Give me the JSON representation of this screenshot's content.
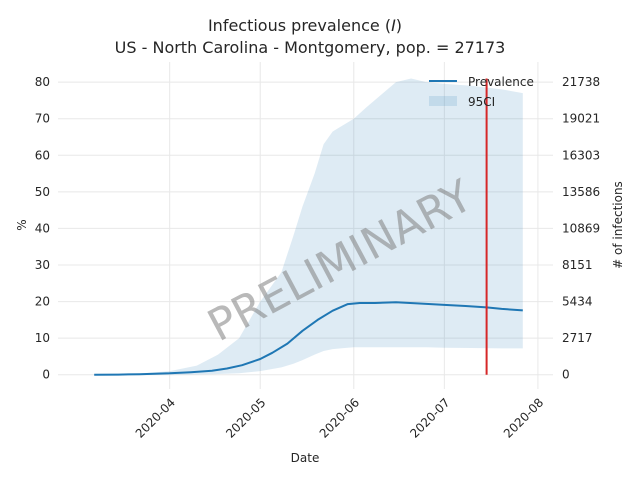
{
  "chart_data": {
    "type": "line",
    "title": "Infectious prevalence (I)",
    "title_prefix": "Infectious prevalence (",
    "title_symbol": "I",
    "title_suffix": ")",
    "subtitle": "US - North Carolina - Montgomery, pop. = 27173",
    "xlabel": "Date",
    "ylabel": "%",
    "y2label": "# of infections",
    "watermark": "PRELIMINARY",
    "grid": true,
    "legend_position": "top-right",
    "population": 27173,
    "xlim": [
      "2020-02-24",
      "2020-08-06"
    ],
    "ylim": [
      -3.9,
      85.5
    ],
    "x_ticks": [
      "2020-04",
      "2020-05",
      "2020-06",
      "2020-07",
      "2020-08"
    ],
    "x_tick_dates": [
      "2020-04-01",
      "2020-05-01",
      "2020-06-01",
      "2020-07-01",
      "2020-08-01"
    ],
    "y_ticks": [
      0,
      10,
      20,
      30,
      40,
      50,
      60,
      70,
      80
    ],
    "y2_ticks": [
      0,
      2717,
      5434,
      8151,
      10869,
      13586,
      16303,
      19021,
      21738
    ],
    "series": [
      {
        "name": "Prevalence",
        "color": "#1f77b4",
        "x": [
          "2020-03-07",
          "2020-03-15",
          "2020-03-22",
          "2020-04-01",
          "2020-04-08",
          "2020-04-15",
          "2020-04-20",
          "2020-04-25",
          "2020-05-01",
          "2020-05-05",
          "2020-05-10",
          "2020-05-15",
          "2020-05-20",
          "2020-05-25",
          "2020-05-30",
          "2020-06-03",
          "2020-06-08",
          "2020-06-15",
          "2020-06-22",
          "2020-07-01",
          "2020-07-08",
          "2020-07-15",
          "2020-07-20",
          "2020-07-27"
        ],
        "values": [
          0,
          0.05,
          0.15,
          0.4,
          0.7,
          1.1,
          1.7,
          2.6,
          4.3,
          6.0,
          8.5,
          12.0,
          15.0,
          17.5,
          19.3,
          19.6,
          19.6,
          19.8,
          19.5,
          19.1,
          18.8,
          18.4,
          18.0,
          17.6
        ]
      }
    ],
    "band": {
      "name": "95CI",
      "color": "#1f77b4",
      "opacity": 0.15,
      "x": [
        "2020-03-07",
        "2020-03-20",
        "2020-04-01",
        "2020-04-10",
        "2020-04-17",
        "2020-04-24",
        "2020-05-01",
        "2020-05-08",
        "2020-05-12",
        "2020-05-15",
        "2020-05-19",
        "2020-05-22",
        "2020-05-25",
        "2020-05-29",
        "2020-06-01",
        "2020-06-05",
        "2020-06-10",
        "2020-06-15",
        "2020-06-20",
        "2020-06-25",
        "2020-07-01",
        "2020-07-10",
        "2020-07-20",
        "2020-07-27"
      ],
      "upper": [
        0,
        0.2,
        1.0,
        2.5,
        5.5,
        10.0,
        20.0,
        28.0,
        38.0,
        46.0,
        55.0,
        63.0,
        66.5,
        68.5,
        70.0,
        73.0,
        76.5,
        80.0,
        81.0,
        80.0,
        79.5,
        79.0,
        78.0,
        77.0
      ],
      "lower": [
        0,
        0,
        0,
        0.1,
        0.2,
        0.4,
        1.0,
        2.0,
        3.0,
        4.0,
        5.5,
        6.5,
        7.0,
        7.3,
        7.5,
        7.5,
        7.5,
        7.5,
        7.5,
        7.5,
        7.4,
        7.3,
        7.2,
        7.2
      ]
    },
    "vline": {
      "x": "2020-07-15",
      "color": "#d62728",
      "y_from": 0,
      "y_to": 81
    }
  }
}
